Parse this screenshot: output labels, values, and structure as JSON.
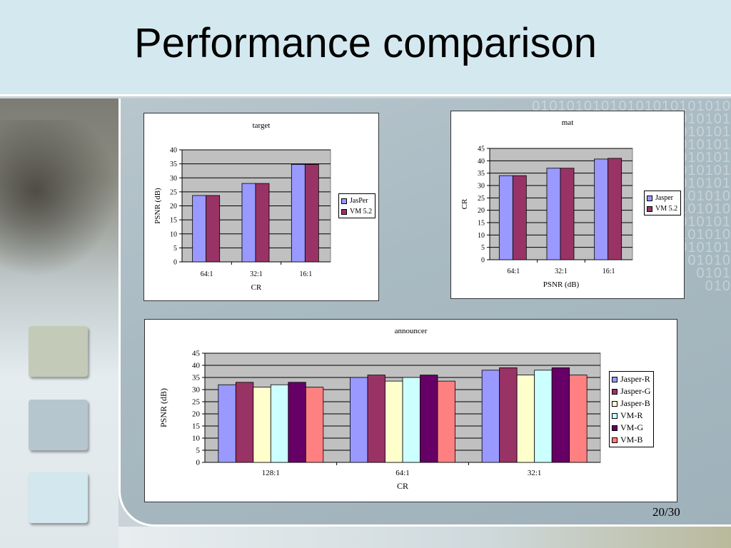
{
  "slide": {
    "title": "Performance comparison",
    "page_number": "20/30"
  },
  "chart_data": [
    {
      "type": "bar",
      "title": "target",
      "xlabel": "CR",
      "ylabel": "PSNR (dB)",
      "ylim": [
        0,
        40
      ],
      "yticks": [
        0,
        5,
        10,
        15,
        20,
        25,
        30,
        35,
        40
      ],
      "categories": [
        "64:1",
        "32:1",
        "16:1"
      ],
      "series": [
        {
          "name": "JasPer",
          "color": "#9999ff",
          "values": [
            23.7,
            28.0,
            34.8
          ]
        },
        {
          "name": "VM 5.2",
          "color": "#993366",
          "values": [
            23.7,
            28.0,
            34.8
          ]
        }
      ],
      "grid": true,
      "legend": "right"
    },
    {
      "type": "bar",
      "title": "mat",
      "xlabel": "PSNR (dB)",
      "ylabel": "CR",
      "ylim": [
        0,
        45
      ],
      "yticks": [
        0,
        5,
        10,
        15,
        20,
        25,
        30,
        35,
        40,
        45
      ],
      "categories": [
        "64:1",
        "32:1",
        "16:1"
      ],
      "series": [
        {
          "name": "Jasper",
          "color": "#9999ff",
          "values": [
            34.0,
            37.0,
            40.7
          ]
        },
        {
          "name": "VM 5.2",
          "color": "#993366",
          "values": [
            34.0,
            37.0,
            41.0
          ]
        }
      ],
      "grid": true,
      "legend": "right"
    },
    {
      "type": "bar",
      "title": "announcer",
      "xlabel": "CR",
      "ylabel": "PSNR (dB)",
      "ylim": [
        0,
        45
      ],
      "yticks": [
        0,
        5,
        10,
        15,
        20,
        25,
        30,
        35,
        40,
        45
      ],
      "categories": [
        "128:1",
        "64:1",
        "32:1"
      ],
      "series": [
        {
          "name": "Jasper-R",
          "color": "#9999ff",
          "values": [
            32.0,
            35.0,
            38.0
          ]
        },
        {
          "name": "Jasper-G",
          "color": "#993366",
          "values": [
            33.0,
            36.0,
            39.0
          ]
        },
        {
          "name": "Jasper-B",
          "color": "#ffffcc",
          "values": [
            31.0,
            33.5,
            36.0
          ]
        },
        {
          "name": "VM-R",
          "color": "#ccffff",
          "values": [
            32.0,
            35.0,
            38.0
          ]
        },
        {
          "name": "VM-G",
          "color": "#660066",
          "values": [
            33.0,
            36.0,
            39.0
          ]
        },
        {
          "name": "VM-B",
          "color": "#ff8080",
          "values": [
            31.0,
            33.5,
            36.0
          ]
        }
      ],
      "grid": true,
      "legend": "right"
    }
  ]
}
